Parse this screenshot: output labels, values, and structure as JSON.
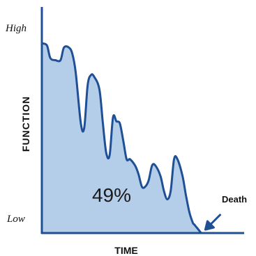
{
  "chart_data": {
    "type": "area",
    "xlabel": "TIME",
    "ylabel": "FUNCTION",
    "y_tick_labels": {
      "top": "High",
      "bottom": "Low"
    },
    "center_label": "49%",
    "annotation": {
      "text": "Death",
      "x": 94
    },
    "xlim": [
      0,
      100
    ],
    "ylim": [
      0,
      100
    ],
    "grid": false,
    "series": [
      {
        "x": [
          0,
          3,
          5,
          8,
          11,
          13,
          16,
          18,
          20,
          23,
          25,
          27,
          29,
          31,
          34,
          36,
          38,
          40,
          42,
          44,
          46,
          48,
          50,
          52,
          55,
          57,
          59,
          61,
          63,
          65,
          67,
          70,
          72,
          74,
          76,
          78,
          80,
          83,
          85,
          87,
          89,
          90,
          91,
          92,
          93,
          94
        ],
        "y": [
          90,
          89,
          83,
          82,
          82,
          88,
          88,
          85,
          76,
          52,
          50,
          70,
          75,
          74,
          68,
          52,
          38,
          37,
          55,
          53,
          52,
          44,
          35,
          35,
          32,
          28,
          22,
          22,
          25,
          32,
          32,
          27,
          20,
          16,
          20,
          35,
          35,
          27,
          18,
          10,
          5,
          4,
          3,
          2,
          1,
          0
        ]
      }
    ],
    "colors": {
      "fill": "#b4cde8",
      "line": "#1f4f95",
      "axis": "#1f4f95",
      "arrow": "#1f4f95",
      "text": "#111111"
    }
  }
}
